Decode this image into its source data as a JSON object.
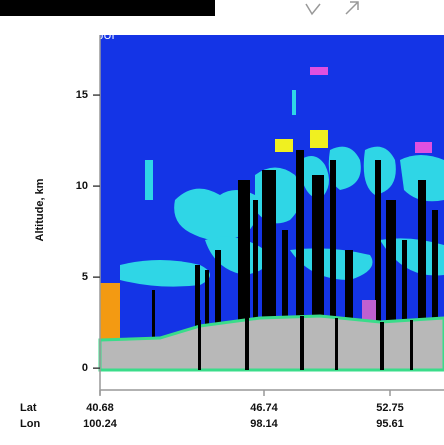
{
  "chart_data": {
    "type": "feature-mask",
    "title": "JUI",
    "ylabel": "Altitude, km",
    "ylim": [
      -0.1,
      18.3
    ],
    "yticks": [
      0,
      5,
      10,
      15
    ],
    "x_rows": [
      {
        "name": "Lat",
        "labels": [
          40.68,
          46.74,
          52.75
        ]
      },
      {
        "name": "Lon",
        "labels": [
          100.24,
          98.14,
          95.61
        ]
      }
    ]
  }
}
